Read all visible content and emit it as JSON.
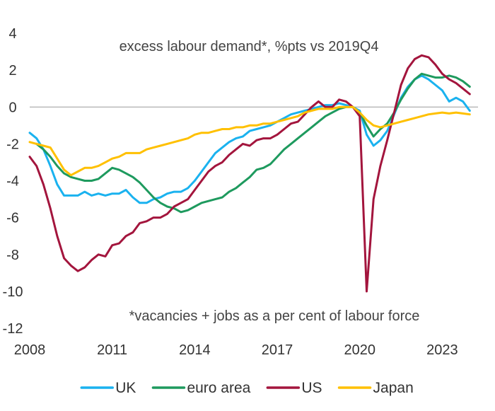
{
  "chart_data": {
    "type": "line",
    "title": "",
    "xlabel": "",
    "ylabel": "",
    "xlim": [
      2008,
      2024.3
    ],
    "ylim": [
      -12,
      4
    ],
    "x_ticks": [
      2008,
      2011,
      2014,
      2017,
      2020,
      2023
    ],
    "x_tick_labels": [
      "2008",
      "2011",
      "2014",
      "2017",
      "2020",
      "2023"
    ],
    "y_ticks": [
      4,
      2,
      0,
      -2,
      -4,
      -6,
      -8,
      -10,
      -12
    ],
    "y_tick_labels": [
      "4",
      "2",
      "0",
      "-2",
      "-4",
      "-6",
      "-8",
      "-10",
      "-12"
    ],
    "zero_line": true,
    "grid": false,
    "legend_position": "bottom",
    "annotations": [
      {
        "text": "excess labour demand*, %pts vs 2019Q4",
        "position": "top-center"
      },
      {
        "text": "*vacancies + jobs as a per cent of labour force",
        "position": "bottom-center"
      }
    ],
    "series": [
      {
        "name": "UK",
        "color": "#1ab2ef",
        "points": [
          [
            2008.0,
            -1.4
          ],
          [
            2008.25,
            -1.7
          ],
          [
            2008.5,
            -2.3
          ],
          [
            2008.75,
            -3.2
          ],
          [
            2009.0,
            -4.2
          ],
          [
            2009.25,
            -4.8
          ],
          [
            2009.5,
            -4.8
          ],
          [
            2009.75,
            -4.8
          ],
          [
            2010.0,
            -4.6
          ],
          [
            2010.25,
            -4.8
          ],
          [
            2010.5,
            -4.7
          ],
          [
            2010.75,
            -4.8
          ],
          [
            2011.0,
            -4.7
          ],
          [
            2011.25,
            -4.7
          ],
          [
            2011.5,
            -4.5
          ],
          [
            2011.75,
            -4.9
          ],
          [
            2012.0,
            -5.2
          ],
          [
            2012.25,
            -5.2
          ],
          [
            2012.5,
            -5.0
          ],
          [
            2012.75,
            -4.9
          ],
          [
            2013.0,
            -4.7
          ],
          [
            2013.25,
            -4.6
          ],
          [
            2013.5,
            -4.6
          ],
          [
            2013.75,
            -4.4
          ],
          [
            2014.0,
            -4.0
          ],
          [
            2014.25,
            -3.5
          ],
          [
            2014.5,
            -3.0
          ],
          [
            2014.75,
            -2.5
          ],
          [
            2015.0,
            -2.2
          ],
          [
            2015.25,
            -1.9
          ],
          [
            2015.5,
            -1.7
          ],
          [
            2015.75,
            -1.6
          ],
          [
            2016.0,
            -1.3
          ],
          [
            2016.25,
            -1.2
          ],
          [
            2016.5,
            -1.1
          ],
          [
            2016.75,
            -1.0
          ],
          [
            2017.0,
            -0.8
          ],
          [
            2017.25,
            -0.6
          ],
          [
            2017.5,
            -0.4
          ],
          [
            2017.75,
            -0.3
          ],
          [
            2018.0,
            -0.2
          ],
          [
            2018.25,
            -0.1
          ],
          [
            2018.5,
            0.0
          ],
          [
            2018.75,
            0.1
          ],
          [
            2019.0,
            0.1
          ],
          [
            2019.25,
            0.2
          ],
          [
            2019.5,
            0.1
          ],
          [
            2019.75,
            0.0
          ],
          [
            2020.0,
            -0.2
          ],
          [
            2020.25,
            -1.5
          ],
          [
            2020.5,
            -2.1
          ],
          [
            2020.75,
            -1.8
          ],
          [
            2021.0,
            -1.3
          ],
          [
            2021.25,
            -0.4
          ],
          [
            2021.5,
            0.5
          ],
          [
            2021.75,
            1.1
          ],
          [
            2022.0,
            1.5
          ],
          [
            2022.25,
            1.7
          ],
          [
            2022.5,
            1.5
          ],
          [
            2022.75,
            1.2
          ],
          [
            2023.0,
            0.9
          ],
          [
            2023.25,
            0.3
          ],
          [
            2023.5,
            0.5
          ],
          [
            2023.75,
            0.3
          ],
          [
            2024.0,
            -0.2
          ]
        ]
      },
      {
        "name": "euro area",
        "color": "#1e9a5e",
        "points": [
          [
            2008.25,
            -2.0
          ],
          [
            2008.5,
            -2.3
          ],
          [
            2008.75,
            -2.7
          ],
          [
            2009.0,
            -3.2
          ],
          [
            2009.25,
            -3.6
          ],
          [
            2009.5,
            -3.8
          ],
          [
            2009.75,
            -3.9
          ],
          [
            2010.0,
            -4.0
          ],
          [
            2010.25,
            -4.0
          ],
          [
            2010.5,
            -3.9
          ],
          [
            2010.75,
            -3.6
          ],
          [
            2011.0,
            -3.3
          ],
          [
            2011.25,
            -3.4
          ],
          [
            2011.5,
            -3.6
          ],
          [
            2011.75,
            -3.8
          ],
          [
            2012.0,
            -4.1
          ],
          [
            2012.25,
            -4.5
          ],
          [
            2012.5,
            -4.9
          ],
          [
            2012.75,
            -5.2
          ],
          [
            2013.0,
            -5.4
          ],
          [
            2013.25,
            -5.5
          ],
          [
            2013.5,
            -5.7
          ],
          [
            2013.75,
            -5.6
          ],
          [
            2014.0,
            -5.4
          ],
          [
            2014.25,
            -5.2
          ],
          [
            2014.5,
            -5.1
          ],
          [
            2014.75,
            -5.0
          ],
          [
            2015.0,
            -4.9
          ],
          [
            2015.25,
            -4.6
          ],
          [
            2015.5,
            -4.4
          ],
          [
            2015.75,
            -4.1
          ],
          [
            2016.0,
            -3.8
          ],
          [
            2016.25,
            -3.4
          ],
          [
            2016.5,
            -3.3
          ],
          [
            2016.75,
            -3.1
          ],
          [
            2017.0,
            -2.7
          ],
          [
            2017.25,
            -2.3
          ],
          [
            2017.5,
            -2.0
          ],
          [
            2017.75,
            -1.7
          ],
          [
            2018.0,
            -1.4
          ],
          [
            2018.25,
            -1.1
          ],
          [
            2018.5,
            -0.8
          ],
          [
            2018.75,
            -0.5
          ],
          [
            2019.0,
            -0.3
          ],
          [
            2019.25,
            -0.1
          ],
          [
            2019.5,
            0.0
          ],
          [
            2019.75,
            0.0
          ],
          [
            2020.0,
            -0.3
          ],
          [
            2020.25,
            -1.0
          ],
          [
            2020.5,
            -1.6
          ],
          [
            2020.75,
            -1.2
          ],
          [
            2021.0,
            -0.9
          ],
          [
            2021.25,
            -0.3
          ],
          [
            2021.5,
            0.4
          ],
          [
            2021.75,
            1.0
          ],
          [
            2022.0,
            1.5
          ],
          [
            2022.25,
            1.8
          ],
          [
            2022.5,
            1.7
          ],
          [
            2022.75,
            1.6
          ],
          [
            2023.0,
            1.6
          ],
          [
            2023.25,
            1.7
          ],
          [
            2023.5,
            1.6
          ],
          [
            2023.75,
            1.4
          ],
          [
            2024.0,
            1.1
          ]
        ]
      },
      {
        "name": "US",
        "color": "#a3153d",
        "points": [
          [
            2008.0,
            -2.7
          ],
          [
            2008.25,
            -3.2
          ],
          [
            2008.5,
            -4.2
          ],
          [
            2008.75,
            -5.5
          ],
          [
            2009.0,
            -7.0
          ],
          [
            2009.25,
            -8.2
          ],
          [
            2009.5,
            -8.6
          ],
          [
            2009.75,
            -8.9
          ],
          [
            2010.0,
            -8.7
          ],
          [
            2010.25,
            -8.3
          ],
          [
            2010.5,
            -8.0
          ],
          [
            2010.75,
            -8.1
          ],
          [
            2011.0,
            -7.5
          ],
          [
            2011.25,
            -7.4
          ],
          [
            2011.5,
            -7.0
          ],
          [
            2011.75,
            -6.8
          ],
          [
            2012.0,
            -6.3
          ],
          [
            2012.25,
            -6.2
          ],
          [
            2012.5,
            -6.0
          ],
          [
            2012.75,
            -6.0
          ],
          [
            2013.0,
            -5.8
          ],
          [
            2013.25,
            -5.4
          ],
          [
            2013.5,
            -5.2
          ],
          [
            2013.75,
            -5.0
          ],
          [
            2014.0,
            -4.5
          ],
          [
            2014.25,
            -4.0
          ],
          [
            2014.5,
            -3.5
          ],
          [
            2014.75,
            -3.2
          ],
          [
            2015.0,
            -3.0
          ],
          [
            2015.25,
            -2.6
          ],
          [
            2015.5,
            -2.3
          ],
          [
            2015.75,
            -2.0
          ],
          [
            2016.0,
            -2.1
          ],
          [
            2016.25,
            -1.8
          ],
          [
            2016.5,
            -1.7
          ],
          [
            2016.75,
            -1.7
          ],
          [
            2017.0,
            -1.5
          ],
          [
            2017.25,
            -1.2
          ],
          [
            2017.5,
            -0.9
          ],
          [
            2017.75,
            -0.8
          ],
          [
            2018.0,
            -0.4
          ],
          [
            2018.25,
            0.0
          ],
          [
            2018.5,
            0.3
          ],
          [
            2018.75,
            0.0
          ],
          [
            2019.0,
            0.0
          ],
          [
            2019.25,
            0.4
          ],
          [
            2019.5,
            0.3
          ],
          [
            2019.75,
            0.0
          ],
          [
            2020.0,
            -0.5
          ],
          [
            2020.25,
            -10.0
          ],
          [
            2020.5,
            -5.0
          ],
          [
            2020.75,
            -3.2
          ],
          [
            2021.0,
            -1.8
          ],
          [
            2021.25,
            -0.3
          ],
          [
            2021.5,
            1.2
          ],
          [
            2021.75,
            2.1
          ],
          [
            2022.0,
            2.6
          ],
          [
            2022.25,
            2.8
          ],
          [
            2022.5,
            2.7
          ],
          [
            2022.75,
            2.3
          ],
          [
            2023.0,
            1.8
          ],
          [
            2023.25,
            1.5
          ],
          [
            2023.5,
            1.3
          ],
          [
            2023.75,
            1.0
          ],
          [
            2024.0,
            0.7
          ]
        ]
      },
      {
        "name": "Japan",
        "color": "#ffc000",
        "points": [
          [
            2008.0,
            -1.9
          ],
          [
            2008.25,
            -2.0
          ],
          [
            2008.5,
            -2.1
          ],
          [
            2008.75,
            -2.2
          ],
          [
            2009.0,
            -2.8
          ],
          [
            2009.25,
            -3.4
          ],
          [
            2009.5,
            -3.7
          ],
          [
            2009.75,
            -3.5
          ],
          [
            2010.0,
            -3.3
          ],
          [
            2010.25,
            -3.3
          ],
          [
            2010.5,
            -3.2
          ],
          [
            2010.75,
            -3.0
          ],
          [
            2011.0,
            -2.8
          ],
          [
            2011.25,
            -2.7
          ],
          [
            2011.5,
            -2.5
          ],
          [
            2011.75,
            -2.5
          ],
          [
            2012.0,
            -2.5
          ],
          [
            2012.25,
            -2.3
          ],
          [
            2012.5,
            -2.2
          ],
          [
            2012.75,
            -2.1
          ],
          [
            2013.0,
            -2.0
          ],
          [
            2013.25,
            -1.9
          ],
          [
            2013.5,
            -1.8
          ],
          [
            2013.75,
            -1.7
          ],
          [
            2014.0,
            -1.5
          ],
          [
            2014.25,
            -1.4
          ],
          [
            2014.5,
            -1.4
          ],
          [
            2014.75,
            -1.3
          ],
          [
            2015.0,
            -1.2
          ],
          [
            2015.25,
            -1.2
          ],
          [
            2015.5,
            -1.1
          ],
          [
            2015.75,
            -1.1
          ],
          [
            2016.0,
            -1.0
          ],
          [
            2016.25,
            -1.0
          ],
          [
            2016.5,
            -0.9
          ],
          [
            2016.75,
            -0.9
          ],
          [
            2017.0,
            -0.8
          ],
          [
            2017.25,
            -0.7
          ],
          [
            2017.5,
            -0.6
          ],
          [
            2017.75,
            -0.5
          ],
          [
            2018.0,
            -0.3
          ],
          [
            2018.25,
            -0.2
          ],
          [
            2018.5,
            -0.1
          ],
          [
            2018.75,
            -0.1
          ],
          [
            2019.0,
            -0.1
          ],
          [
            2019.25,
            0.0
          ],
          [
            2019.5,
            0.0
          ],
          [
            2019.75,
            0.0
          ],
          [
            2020.0,
            -0.3
          ],
          [
            2020.25,
            -0.7
          ],
          [
            2020.5,
            -1.0
          ],
          [
            2020.75,
            -1.1
          ],
          [
            2021.0,
            -1.0
          ],
          [
            2021.25,
            -0.9
          ],
          [
            2021.5,
            -0.8
          ],
          [
            2021.75,
            -0.7
          ],
          [
            2022.0,
            -0.6
          ],
          [
            2022.25,
            -0.5
          ],
          [
            2022.5,
            -0.4
          ],
          [
            2022.75,
            -0.35
          ],
          [
            2023.0,
            -0.3
          ],
          [
            2023.25,
            -0.35
          ],
          [
            2023.5,
            -0.3
          ],
          [
            2023.75,
            -0.35
          ],
          [
            2024.0,
            -0.4
          ]
        ]
      }
    ]
  }
}
